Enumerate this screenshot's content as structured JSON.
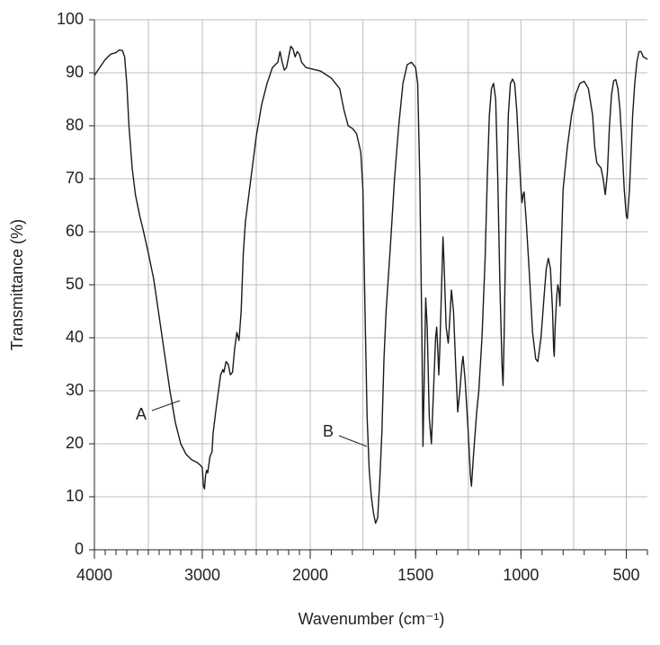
{
  "chart_data": {
    "type": "line",
    "xlabel": "Wavenumber (cm⁻¹)",
    "ylabel": "Transmittance (%)",
    "xlim": [
      4000,
      400
    ],
    "xbreak": 2000,
    "xticks": [
      4000,
      3000,
      2000,
      1500,
      1000,
      500
    ],
    "xgrid": [
      3500,
      2500,
      1750,
      1250,
      750
    ],
    "xminor_step": 100,
    "ylim": [
      0,
      100
    ],
    "yticks": [
      0,
      10,
      20,
      30,
      40,
      50,
      60,
      70,
      80,
      90,
      100
    ],
    "grid": true,
    "annotations": [
      "A",
      "B"
    ],
    "x": [
      4000,
      3950,
      3900,
      3850,
      3800,
      3770,
      3740,
      3720,
      3700,
      3680,
      3650,
      3620,
      3580,
      3550,
      3500,
      3450,
      3400,
      3350,
      3300,
      3250,
      3200,
      3150,
      3100,
      3050,
      3020,
      3000,
      2990,
      2980,
      2970,
      2960,
      2950,
      2930,
      2910,
      2900,
      2870,
      2850,
      2830,
      2810,
      2800,
      2780,
      2760,
      2740,
      2720,
      2700,
      2680,
      2660,
      2640,
      2620,
      2600,
      2550,
      2500,
      2450,
      2400,
      2350,
      2300,
      2280,
      2260,
      2240,
      2220,
      2200,
      2180,
      2160,
      2140,
      2120,
      2100,
      2080,
      2040,
      2000,
      1950,
      1900,
      1860,
      1840,
      1820,
      1800,
      1780,
      1760,
      1750,
      1740,
      1730,
      1720,
      1710,
      1700,
      1690,
      1680,
      1670,
      1660,
      1650,
      1640,
      1620,
      1600,
      1580,
      1560,
      1540,
      1520,
      1500,
      1490,
      1480,
      1470,
      1465,
      1460,
      1452,
      1445,
      1435,
      1425,
      1415,
      1405,
      1400,
      1395,
      1390,
      1385,
      1375,
      1370,
      1365,
      1355,
      1345,
      1340,
      1330,
      1320,
      1310,
      1300,
      1290,
      1280,
      1275,
      1265,
      1250,
      1240,
      1235,
      1225,
      1210,
      1200,
      1185,
      1170,
      1160,
      1150,
      1140,
      1130,
      1120,
      1110,
      1100,
      1090,
      1085,
      1080,
      1070,
      1060,
      1050,
      1040,
      1030,
      1020,
      1010,
      1000,
      995,
      990,
      985,
      975,
      960,
      945,
      930,
      920,
      905,
      890,
      880,
      870,
      860,
      850,
      845,
      842,
      838,
      830,
      825,
      820,
      815,
      810,
      800,
      780,
      760,
      740,
      720,
      700,
      680,
      660,
      650,
      640,
      620,
      610,
      600,
      590,
      580,
      570,
      560,
      550,
      540,
      530,
      520,
      510,
      500,
      495,
      485,
      470,
      460,
      450,
      440,
      430,
      420,
      410,
      400
    ],
    "series": [
      {
        "color": "#1a1a1a",
        "values": [
          89.5,
          91,
          92.5,
          93.5,
          93.8,
          94.3,
          94.2,
          93,
          88,
          80,
          72,
          67,
          63,
          60.5,
          56,
          51,
          44,
          37,
          30,
          24,
          20,
          18,
          17,
          16.5,
          16,
          15.5,
          12,
          11.5,
          14,
          15,
          14.5,
          17.5,
          18.5,
          22,
          27,
          30,
          33,
          34,
          33.5,
          35.5,
          35,
          33,
          33.5,
          38,
          41,
          39.5,
          45,
          56,
          62,
          70,
          78,
          84,
          88,
          91,
          92,
          94,
          92,
          90.5,
          91,
          93,
          95,
          94.5,
          93,
          94,
          93.5,
          92,
          91,
          90.8,
          90.3,
          89,
          87,
          83,
          80,
          79.5,
          78.5,
          75,
          68,
          45,
          25,
          15,
          10,
          7,
          5,
          6,
          13,
          22,
          36,
          45,
          57,
          70,
          80,
          88,
          91.5,
          92,
          91,
          88,
          70,
          40,
          19.5,
          30,
          47.5,
          42,
          25,
          20,
          30,
          40,
          42,
          38,
          33,
          38,
          52,
          59,
          54,
          42,
          39,
          42,
          49,
          45,
          35,
          26,
          30,
          35,
          36.5,
          32,
          22,
          14,
          12,
          18,
          26,
          30,
          40,
          55,
          70,
          82,
          87,
          88,
          85,
          70,
          50,
          35,
          31,
          40,
          65,
          82,
          88,
          88.8,
          88,
          83,
          75,
          68,
          65.5,
          67,
          67.5,
          62,
          52,
          41,
          36,
          35.5,
          40,
          48,
          53,
          55,
          53,
          45,
          38,
          36.5,
          42,
          48,
          50,
          49,
          46,
          55,
          68,
          76,
          82,
          86,
          88,
          88.4,
          87,
          82,
          76,
          73,
          72,
          70,
          67,
          71,
          80,
          86,
          88.5,
          88.7,
          87,
          83,
          76,
          68,
          63,
          62.5,
          68,
          82,
          88,
          92,
          94,
          94,
          93,
          92.8,
          92.5
        ]
      }
    ]
  }
}
